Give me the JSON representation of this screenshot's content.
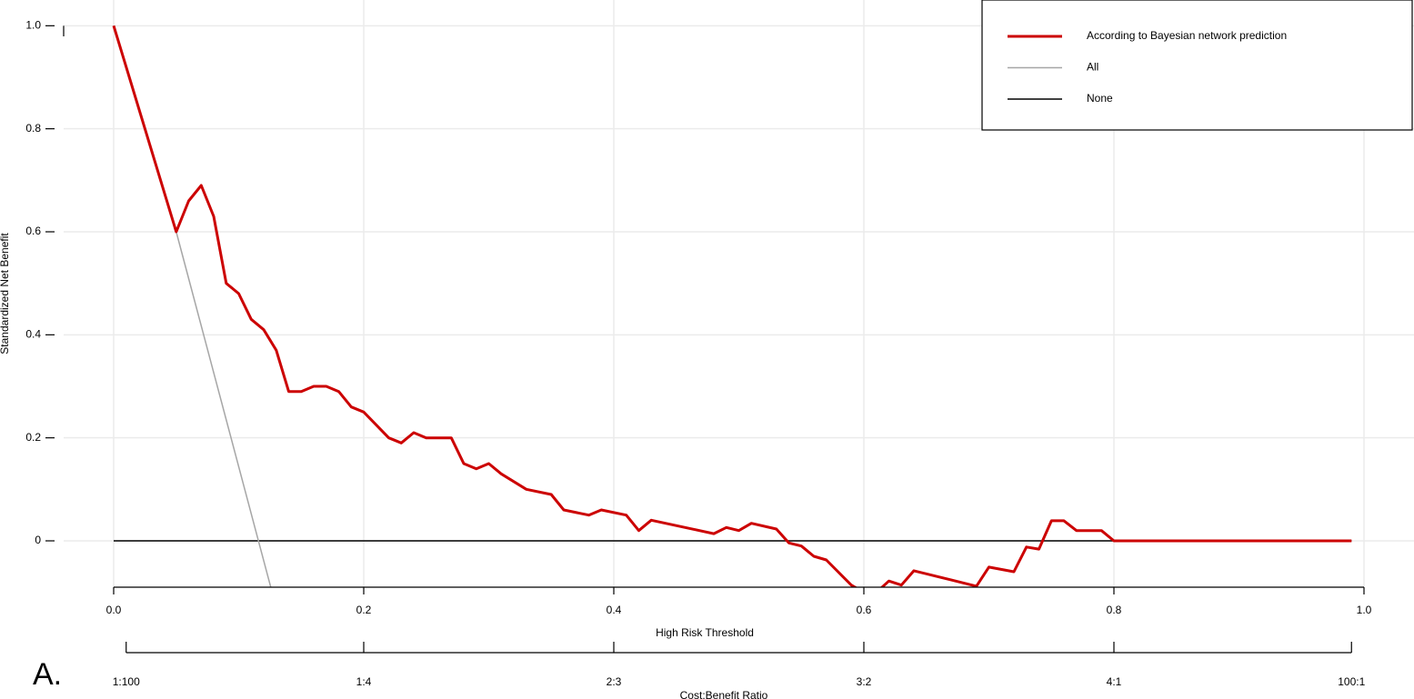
{
  "chart_data": {
    "type": "line",
    "x_label": "High Risk Threshold",
    "y_label": "Standardized Net Benefit",
    "panel_label": "A.",
    "xlim": [
      -0.04,
      1.04
    ],
    "ylim": [
      -0.09,
      1.05
    ],
    "xticks": [
      {
        "value": 0,
        "label": "0.0"
      },
      0.2,
      0.4,
      0.6,
      0.8,
      {
        "value": 1,
        "label": "1.0"
      }
    ],
    "yticks": [
      0,
      0.2,
      0.4,
      0.6,
      0.8,
      {
        "value": 1,
        "label": "1.0"
      }
    ],
    "grid": true,
    "legend": "upper right",
    "series": [
      {
        "name": "According to Bayesian network prediction",
        "color": "#cc0000",
        "width": 3,
        "x": [
          0,
          0.05,
          0.06,
          0.07,
          0.08,
          0.09,
          0.1,
          0.11,
          0.12,
          0.13,
          0.14,
          0.15,
          0.16,
          0.17,
          0.18,
          0.19,
          0.2,
          0.22,
          0.23,
          0.24,
          0.25,
          0.26,
          0.27,
          0.28,
          0.29,
          0.3,
          0.31,
          0.33,
          0.35,
          0.36,
          0.38,
          0.39,
          0.41,
          0.42,
          0.43,
          0.48,
          0.49,
          0.5,
          0.51,
          0.53,
          0.54,
          0.55,
          0.56,
          0.57,
          0.59,
          0.6,
          0.61,
          0.62,
          0.63,
          0.64,
          0.67,
          0.69,
          0.7,
          0.72,
          0.73,
          0.74,
          0.75,
          0.76,
          0.77,
          0.79,
          0.8,
          0.99
        ],
        "values": [
          1.0,
          0.6,
          0.66,
          0.69,
          0.63,
          0.5,
          0.48,
          0.43,
          0.41,
          0.37,
          0.29,
          0.29,
          0.3,
          0.3,
          0.29,
          0.26,
          0.25,
          0.2,
          0.19,
          0.21,
          0.2,
          0.2,
          0.2,
          0.15,
          0.14,
          0.15,
          0.13,
          0.1,
          0.09,
          0.06,
          0.05,
          0.06,
          0.05,
          0.02,
          0.04,
          0.014,
          0.026,
          0.02,
          0.034,
          0.023,
          -0.004,
          -0.01,
          -0.03,
          -0.037,
          -0.086,
          -0.1,
          -0.1,
          -0.078,
          -0.086,
          -0.058,
          -0.076,
          -0.088,
          -0.051,
          -0.06,
          -0.012,
          -0.016,
          0.039,
          0.039,
          0.02,
          0.02,
          0,
          0
        ]
      },
      {
        "name": "All",
        "color": "#a6a6a6",
        "width": 1.5,
        "x": [
          0,
          0.05,
          0.13
        ],
        "values": [
          1.0,
          0.6,
          -0.13
        ]
      },
      {
        "name": "None",
        "color": "#000000",
        "width": 1.5,
        "x": [
          0,
          0.99
        ],
        "values": [
          0,
          0
        ]
      }
    ],
    "cost_benefit_axis": {
      "title": "Cost:Benefit Ratio",
      "ticks": [
        {
          "value": 0.01,
          "label": "1:100"
        },
        {
          "value": 0.2,
          "label": "1:4"
        },
        {
          "value": 0.4,
          "label": "2:3"
        },
        {
          "value": 0.6,
          "label": "3:2"
        },
        {
          "value": 0.8,
          "label": "4:1"
        },
        {
          "value": 0.99,
          "label": "100:1"
        }
      ]
    }
  }
}
